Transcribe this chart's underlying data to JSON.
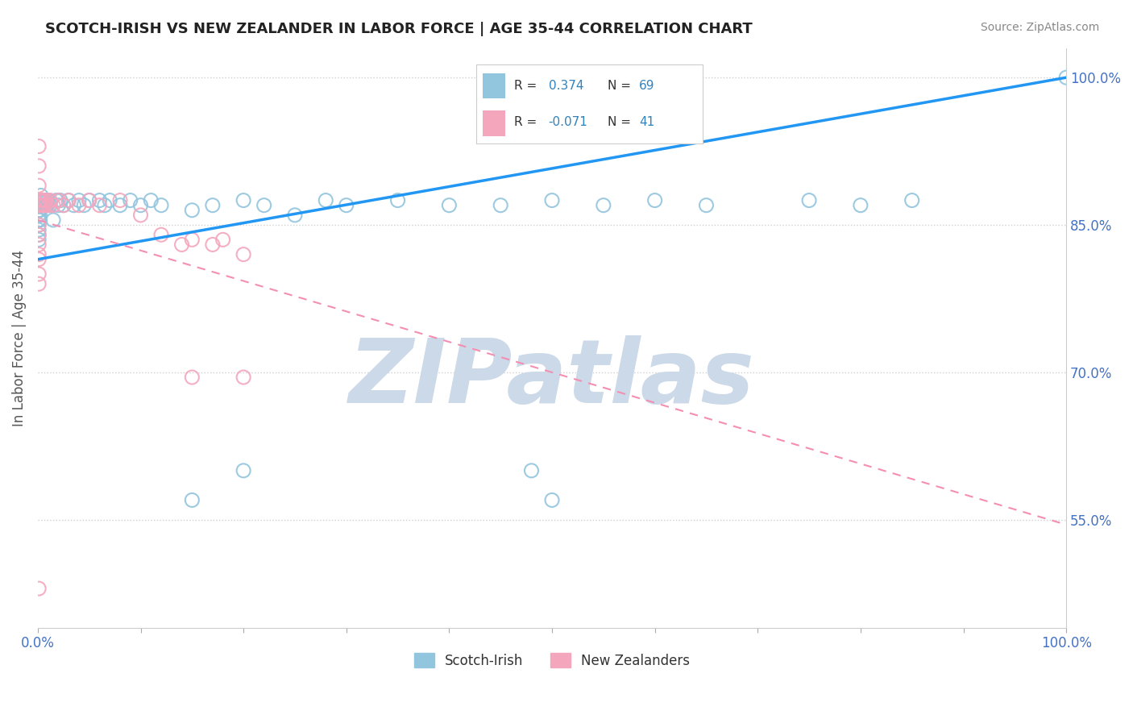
{
  "title": "SCOTCH-IRISH VS NEW ZEALANDER IN LABOR FORCE | AGE 35-44 CORRELATION CHART",
  "source": "Source: ZipAtlas.com",
  "ylabel": "In Labor Force | Age 35-44",
  "xlim": [
    0.0,
    1.0
  ],
  "ylim": [
    0.44,
    1.03
  ],
  "x_ticks": [
    0.0,
    0.1,
    0.2,
    0.3,
    0.4,
    0.5,
    0.6,
    0.7,
    0.8,
    0.9,
    1.0
  ],
  "x_tick_labels": [
    "0.0%",
    "",
    "",
    "",
    "",
    "",
    "",
    "",
    "",
    "",
    "100.0%"
  ],
  "y_tick_values": [
    0.55,
    0.7,
    0.85,
    1.0
  ],
  "y_tick_labels": [
    "55.0%",
    "70.0%",
    "85.0%",
    "100.0%"
  ],
  "scotch_irish_color": "#92c5de",
  "new_zealander_color": "#f4a6bd",
  "scotch_irish_R": 0.374,
  "scotch_irish_N": 69,
  "new_zealander_R": -0.071,
  "new_zealander_N": 41,
  "legend_R_color": "#3182bd",
  "legend_N_color": "#3182bd",
  "watermark": "ZIPatlas",
  "watermark_color": "#ccd9e8",
  "background_color": "#ffffff",
  "grid_color": "#d0d0d0",
  "blue_line_start_y": 0.815,
  "blue_line_end_y": 1.0,
  "pink_line_start_y": 0.855,
  "pink_line_end_y": 0.545,
  "scotch_irish_x": [
    0.001,
    0.001,
    0.001,
    0.001,
    0.001,
    0.001,
    0.001,
    0.001,
    0.001,
    0.001,
    0.002,
    0.002,
    0.002,
    0.002,
    0.002,
    0.003,
    0.003,
    0.003,
    0.004,
    0.004,
    0.005,
    0.005,
    0.006,
    0.007,
    0.008,
    0.009,
    0.01,
    0.012,
    0.015,
    0.018,
    0.02,
    0.022,
    0.025,
    0.03,
    0.035,
    0.04,
    0.045,
    0.05,
    0.06,
    0.065,
    0.07,
    0.08,
    0.09,
    0.1,
    0.11,
    0.12,
    0.15,
    0.17,
    0.2,
    0.22,
    0.25,
    0.28,
    0.3,
    0.35,
    0.4,
    0.45,
    0.5,
    0.55,
    0.15,
    0.2,
    0.48,
    0.5,
    0.6,
    0.65,
    0.75,
    0.8,
    0.85,
    1.0
  ],
  "scotch_irish_y": [
    0.875,
    0.87,
    0.865,
    0.86,
    0.855,
    0.85,
    0.845,
    0.84,
    0.835,
    0.87,
    0.875,
    0.87,
    0.865,
    0.86,
    0.855,
    0.88,
    0.875,
    0.87,
    0.875,
    0.87,
    0.875,
    0.87,
    0.875,
    0.87,
    0.875,
    0.87,
    0.875,
    0.87,
    0.855,
    0.875,
    0.87,
    0.875,
    0.87,
    0.875,
    0.87,
    0.875,
    0.87,
    0.875,
    0.875,
    0.87,
    0.875,
    0.87,
    0.875,
    0.87,
    0.875,
    0.87,
    0.865,
    0.87,
    0.875,
    0.87,
    0.86,
    0.875,
    0.87,
    0.875,
    0.87,
    0.87,
    0.875,
    0.87,
    0.57,
    0.6,
    0.6,
    0.57,
    0.875,
    0.87,
    0.875,
    0.87,
    0.875,
    1.0
  ],
  "new_zealander_x": [
    0.001,
    0.001,
    0.001,
    0.001,
    0.001,
    0.001,
    0.001,
    0.002,
    0.002,
    0.003,
    0.003,
    0.004,
    0.005,
    0.006,
    0.007,
    0.008,
    0.01,
    0.012,
    0.015,
    0.02,
    0.025,
    0.03,
    0.04,
    0.05,
    0.06,
    0.08,
    0.1,
    0.12,
    0.14,
    0.15,
    0.17,
    0.18,
    0.2,
    0.001,
    0.001,
    0.001,
    0.001,
    0.15,
    0.2,
    0.001
  ],
  "new_zealander_y": [
    0.93,
    0.91,
    0.89,
    0.87,
    0.85,
    0.84,
    0.83,
    0.87,
    0.875,
    0.875,
    0.87,
    0.875,
    0.87,
    0.875,
    0.87,
    0.875,
    0.87,
    0.875,
    0.87,
    0.875,
    0.87,
    0.875,
    0.87,
    0.875,
    0.87,
    0.875,
    0.86,
    0.84,
    0.83,
    0.835,
    0.83,
    0.835,
    0.82,
    0.82,
    0.815,
    0.8,
    0.79,
    0.695,
    0.695,
    0.48
  ]
}
